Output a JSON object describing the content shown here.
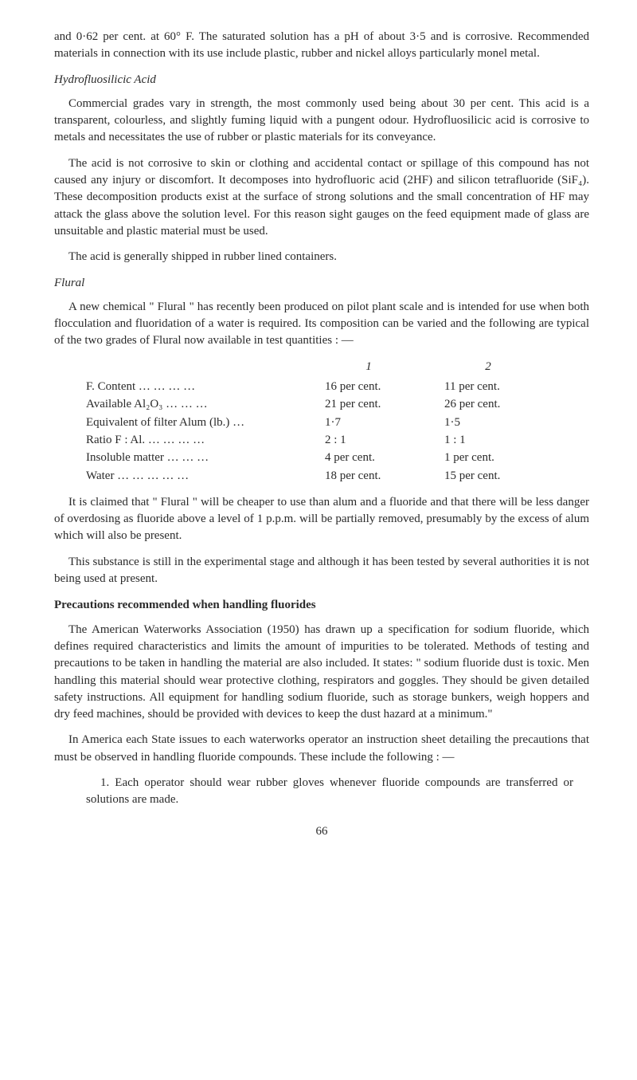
{
  "intro": {
    "p1": "and 0·62 per cent. at 60° F. The saturated solution has a pH of about 3·5 and is corrosive. Recommended materials in connection with its use include plastic, rubber and nickel alloys particularly monel metal."
  },
  "section_hydrofluosilicic": {
    "heading": "Hydrofluosilicic Acid",
    "p1": "Commercial grades vary in strength, the most commonly used being about 30 per cent. This acid is a transparent, colourless, and slightly fuming liquid with a pungent odour. Hydrofluosilicic acid is corrosive to metals and necessitates the use of rubber or plastic materials for its conveyance.",
    "p2": "The acid is not corrosive to skin or clothing and accidental contact or spillage of this compound has not caused any injury or discomfort. It decomposes into hydrofluoric acid (2HF) and silicon tetrafluoride (SiF₄). These decomposition products exist at the surface of strong solutions and the small concentration of HF may attack the glass above the solution level. For this reason sight gauges on the feed equipment made of glass are unsuitable and plastic material must be used.",
    "p3": "The acid is generally shipped in rubber lined containers."
  },
  "section_flural": {
    "heading": "Flural",
    "p1": "A new chemical \" Flural \" has recently been produced on pilot plant scale and is intended for use when both flocculation and fluoridation of a water is required. Its composition can be varied and the following are typical of the two grades of Flural now available in test quantities : —",
    "table": {
      "headers": {
        "col1": "1",
        "col2": "2"
      },
      "rows": [
        {
          "label": "F. Content   …     …     …     …",
          "v1": "16 per cent.",
          "v2": "11 per cent."
        },
        {
          "label": "Available Al₂O₃       …     …     …",
          "v1": "21 per cent.",
          "v2": "26 per cent."
        },
        {
          "label": "Equivalent of filter Alum (lb.)     …",
          "v1": "1·7",
          "v2": "1·5"
        },
        {
          "label": "Ratio F : Al. …    …     …     …",
          "v1": "2 : 1",
          "v2": "1 : 1"
        },
        {
          "label": "Insoluble matter      …     …     …",
          "v1": "4 per cent.",
          "v2": "1 per cent."
        },
        {
          "label": "Water …    …     …     …     …",
          "v1": "18 per cent.",
          "v2": "15 per cent."
        }
      ]
    },
    "p2": "It is claimed that \" Flural \" will be cheaper to use than alum and a fluoride and that there will be less danger of overdosing as fluoride above a level of 1 p.p.m. will be partially removed, presumably by the excess of alum which will also be present.",
    "p3": "This substance is still in the experimental stage and although it has been tested by several authorities it is not being used at present."
  },
  "section_precautions": {
    "heading": "Precautions recommended when handling fluorides",
    "p1": "The American Waterworks Association (1950) has drawn up a specification for sodium fluoride, which defines required characteristics and limits the amount of impurities to be tolerated. Methods of testing and precautions to be taken in handling the material are also included. It states: \" sodium fluoride dust is toxic. Men handling this material should wear protective clothing, respirators and goggles. They should be given detailed safety instructions. All equipment for handling sodium fluoride, such as storage bunkers, weigh hoppers and dry feed machines, should be provided with devices to keep the dust hazard at a minimum.\"",
    "p2": "In America each State issues to each waterworks operator an instruction sheet detailing the precautions that must be observed in handling fluoride compounds. These include the following : —",
    "item1": "1. Each operator should wear rubber gloves whenever fluoride compounds are transferred or solutions are made."
  },
  "page_number": "66"
}
